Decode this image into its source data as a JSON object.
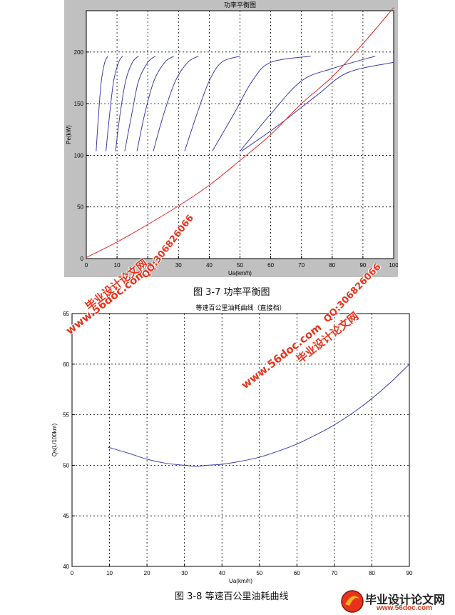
{
  "figures": [
    {
      "caption": "图  3-7  功率平衡图",
      "chart_data": {
        "type": "line",
        "title": "功率平衡图",
        "xlabel": "Ua(km/h)",
        "ylabel": "Pe(kW)",
        "xlim": [
          0,
          100
        ],
        "ylim": [
          0,
          240
        ],
        "xticks": [
          0,
          10,
          20,
          30,
          40,
          50,
          60,
          70,
          80,
          90,
          100
        ],
        "yticks": [
          0,
          50,
          100,
          150,
          200
        ],
        "grid": true,
        "colors": {
          "engine_power": "#3d3dab",
          "resistance_power": "#e02a2a",
          "background": "#c0c0c0"
        },
        "series": [
          {
            "kind": "engine",
            "x": [
              3.2,
              4.0,
              4.9,
              6.0,
              7.0
            ],
            "y": [
              104,
              140,
              172,
              190,
              196
            ]
          },
          {
            "kind": "engine",
            "x": [
              6.4,
              7.6,
              8.9,
              10.5,
              11.8
            ],
            "y": [
              104,
              140,
              172,
              190,
              196
            ]
          },
          {
            "kind": "engine",
            "x": [
              9.5,
              11.0,
              12.8,
              15.0,
              17.0
            ],
            "y": [
              104,
              140,
              172,
              190,
              196
            ]
          },
          {
            "kind": "engine",
            "x": [
              12.5,
              14.8,
              17.0,
              20.0,
              22.5
            ],
            "y": [
              104,
              140,
              172,
              190,
              196
            ]
          },
          {
            "kind": "engine",
            "x": [
              16.5,
              19.0,
              22.0,
              25.5,
              28.5
            ],
            "y": [
              104,
              140,
              172,
              190,
              196
            ]
          },
          {
            "kind": "engine",
            "x": [
              21.8,
              25.2,
              29.0,
              33.0,
              36.5
            ],
            "y": [
              104,
              140,
              172,
              190,
              196
            ]
          },
          {
            "kind": "engine",
            "x": [
              32.0,
              36.0,
              40.0,
              44.0,
              50.0
            ],
            "y": [
              104,
              140,
              172,
              190,
              196
            ]
          },
          {
            "kind": "engine",
            "x": [
              41.0,
              48.0,
              54.0,
              60.0,
              73.0
            ],
            "y": [
              104,
              140,
              172,
              190,
              196
            ]
          },
          {
            "kind": "engine",
            "x": [
              50.0,
              60.0,
              70.0,
              80.0,
              94.0
            ],
            "y": [
              104,
              140,
              172,
              184,
              196
            ]
          },
          {
            "kind": "engine",
            "x": [
              50.5,
              62.0,
              75.0,
              85.0,
              100.0
            ],
            "y": [
              104,
              128,
              158,
              180,
              190
            ]
          },
          {
            "kind": "resistance",
            "x": [
              0,
              10,
              20,
              30,
              40,
              50,
              60,
              70,
              80,
              90,
              100
            ],
            "y": [
              1,
              16,
              33,
              51,
              71,
              95,
              120,
              150,
              176,
              208,
              243
            ]
          }
        ]
      }
    },
    {
      "caption": "图 3-8  等速百公里油耗曲线",
      "chart_data": {
        "type": "line",
        "title": "等速百公里油耗曲线（直接档）",
        "xlabel": "Ua(km/h)",
        "ylabel": "Qs(L/100km)",
        "xlim": [
          0,
          90
        ],
        "ylim": [
          40,
          65
        ],
        "xticks": [
          0,
          10,
          20,
          30,
          40,
          50,
          60,
          70,
          80,
          90
        ],
        "yticks": [
          40,
          45,
          50,
          55,
          60,
          65
        ],
        "grid": true,
        "colors": {
          "line": "#3d3dab",
          "background": "#ffffff"
        },
        "series": [
          {
            "kind": "fuel",
            "x": [
              9.5,
              15,
              20,
              25,
              30,
              33,
              36,
              40,
              45,
              50,
              55,
              60,
              65,
              70,
              75,
              80,
              85,
              90
            ],
            "y": [
              51.8,
              51.2,
              50.6,
              50.2,
              50.0,
              49.9,
              50.0,
              50.1,
              50.4,
              50.8,
              51.4,
              52.1,
              53.0,
              54.0,
              55.2,
              56.6,
              58.2,
              60.0
            ]
          }
        ]
      }
    }
  ],
  "watermarks": {
    "site": "www.56doc.com",
    "brand": "毕业设计论文网",
    "qq": "QQ:306826066"
  },
  "logo": {
    "text": "毕业设计论文网",
    "url": "www.56doc.com"
  }
}
